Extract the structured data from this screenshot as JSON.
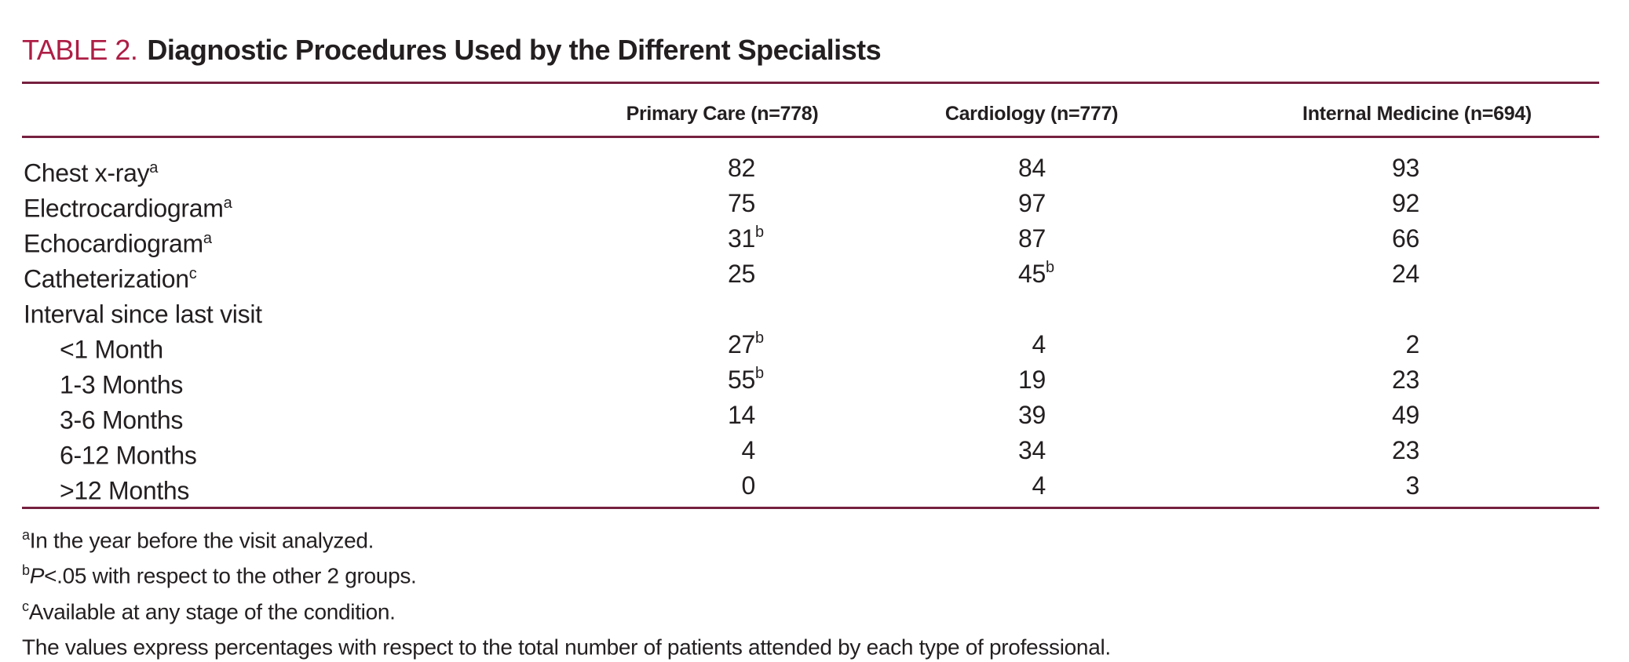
{
  "title": {
    "label": "TABLE 2.",
    "text": "Diagnostic Procedures Used by the Different Specialists"
  },
  "table": {
    "columns": [
      "Primary Care (n=778)",
      "Cardiology (n=777)",
      "Internal Medicine (n=694)"
    ],
    "rows": [
      {
        "label": "Chest x-ray",
        "label_sup": "a",
        "indent": false,
        "values": [
          {
            "v": "82",
            "sup": ""
          },
          {
            "v": "84",
            "sup": ""
          },
          {
            "v": "93",
            "sup": ""
          }
        ]
      },
      {
        "label": "Electrocardiogram",
        "label_sup": "a",
        "indent": false,
        "values": [
          {
            "v": "75",
            "sup": ""
          },
          {
            "v": "97",
            "sup": ""
          },
          {
            "v": "92",
            "sup": ""
          }
        ]
      },
      {
        "label": "Echocardiogram",
        "label_sup": "a",
        "indent": false,
        "values": [
          {
            "v": "31",
            "sup": "b"
          },
          {
            "v": "87",
            "sup": ""
          },
          {
            "v": "66",
            "sup": ""
          }
        ]
      },
      {
        "label": "Catheterization",
        "label_sup": "c",
        "indent": false,
        "values": [
          {
            "v": "25",
            "sup": ""
          },
          {
            "v": "45",
            "sup": "b"
          },
          {
            "v": "24",
            "sup": ""
          }
        ]
      },
      {
        "label": "Interval since last visit",
        "label_sup": "",
        "indent": false,
        "values": [
          {
            "v": "",
            "sup": ""
          },
          {
            "v": "",
            "sup": ""
          },
          {
            "v": "",
            "sup": ""
          }
        ]
      },
      {
        "label": "<1 Month",
        "label_sup": "",
        "indent": true,
        "values": [
          {
            "v": "27",
            "sup": "b"
          },
          {
            "v": "4",
            "sup": ""
          },
          {
            "v": "2",
            "sup": ""
          }
        ]
      },
      {
        "label": "1-3 Months",
        "label_sup": "",
        "indent": true,
        "values": [
          {
            "v": "55",
            "sup": "b"
          },
          {
            "v": "19",
            "sup": ""
          },
          {
            "v": "23",
            "sup": ""
          }
        ]
      },
      {
        "label": "3-6 Months",
        "label_sup": "",
        "indent": true,
        "values": [
          {
            "v": "14",
            "sup": ""
          },
          {
            "v": "39",
            "sup": ""
          },
          {
            "v": "49",
            "sup": ""
          }
        ]
      },
      {
        "label": "6-12 Months",
        "label_sup": "",
        "indent": true,
        "values": [
          {
            "v": "4",
            "sup": ""
          },
          {
            "v": "34",
            "sup": ""
          },
          {
            "v": "23",
            "sup": ""
          }
        ]
      },
      {
        "label": ">12 Months",
        "label_sup": "",
        "indent": true,
        "values": [
          {
            "v": "0",
            "sup": ""
          },
          {
            "v": "4",
            "sup": ""
          },
          {
            "v": "3",
            "sup": ""
          }
        ]
      }
    ]
  },
  "footnotes": [
    {
      "sup": "a",
      "italic": "",
      "text": "In the year before the visit analyzed."
    },
    {
      "sup": "b",
      "italic": "P",
      "text": "<.05 with respect to the other 2 groups."
    },
    {
      "sup": "c",
      "italic": "",
      "text": "Available at any stage of the condition."
    },
    {
      "sup": "",
      "italic": "",
      "text": "The values express percentages with respect to the total number of patients attended by each type of professional."
    }
  ],
  "colors": {
    "accent": "#ae1e45",
    "rule": "#76203f",
    "text": "#231f20"
  }
}
